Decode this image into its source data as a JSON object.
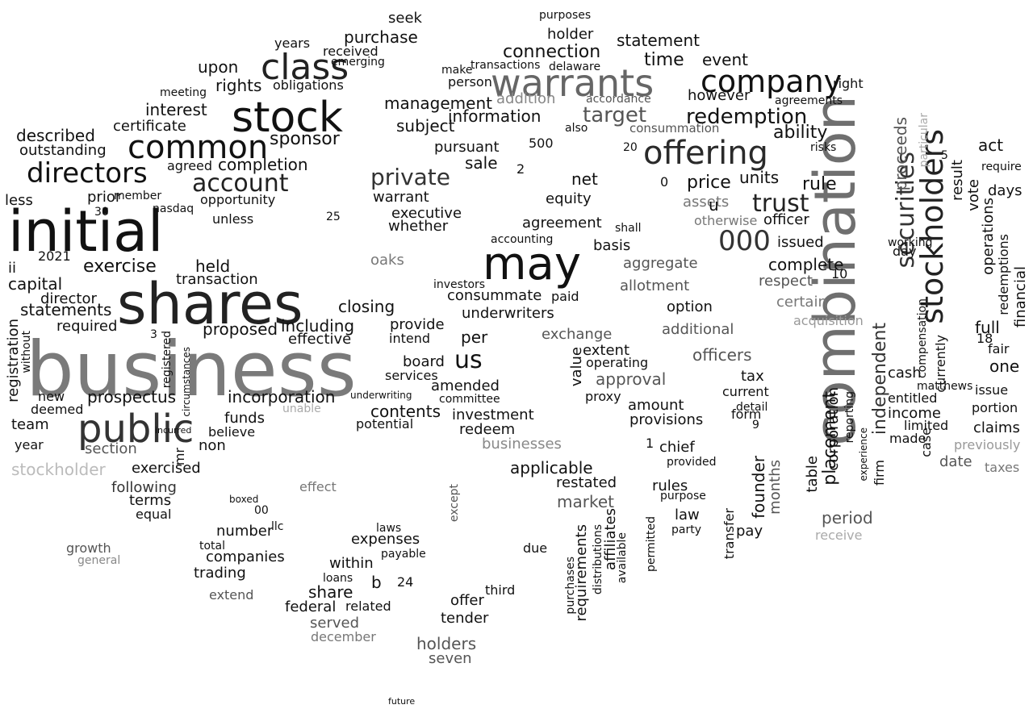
{
  "colors": {
    "background": "#ffffff"
  },
  "words": [
    {
      "text": "business",
      "color": "#7a7a7a"
    },
    {
      "text": "combination",
      "color": "#6f6f6f"
    },
    {
      "text": "initial",
      "color": "#111111"
    },
    {
      "text": "shares",
      "color": "#222222"
    },
    {
      "text": "may",
      "color": "#111111"
    },
    {
      "text": "warrants",
      "color": "#666666"
    },
    {
      "text": "stock",
      "color": "#111111"
    },
    {
      "text": "public",
      "color": "#333333"
    },
    {
      "text": "common",
      "color": "#111111"
    },
    {
      "text": "offering",
      "color": "#2a2a2a"
    },
    {
      "text": "class",
      "color": "#222222"
    },
    {
      "text": "company",
      "color": "#111111"
    },
    {
      "text": "stockholders",
      "color": "#222222"
    },
    {
      "text": "securities",
      "color": "#333333"
    },
    {
      "text": "directors",
      "color": "#111111"
    },
    {
      "text": "000",
      "color": "#333333"
    },
    {
      "text": "trust",
      "color": "#222222"
    },
    {
      "text": "account",
      "color": "#222222"
    },
    {
      "text": "us",
      "color": "#111111"
    },
    {
      "text": "redemption",
      "color": "#111111"
    },
    {
      "text": "private",
      "color": "#333333"
    },
    {
      "text": "target",
      "color": "#555555"
    },
    {
      "text": "proceeds",
      "color": "#555555"
    },
    {
      "text": "placement",
      "color": "#111111"
    },
    {
      "text": "independent",
      "color": "#333333"
    },
    {
      "text": "sponsor",
      "color": "#111111"
    },
    {
      "text": "exercise",
      "color": "#111111"
    },
    {
      "text": "prospectus",
      "color": "#111111"
    },
    {
      "text": "management",
      "color": "#111111"
    },
    {
      "text": "time",
      "color": "#111111"
    },
    {
      "text": "connection",
      "color": "#111111"
    },
    {
      "text": "purchase",
      "color": "#111111"
    },
    {
      "text": "statement",
      "color": "#111111"
    },
    {
      "text": "holder",
      "color": "#111111"
    },
    {
      "text": "however",
      "color": "#111111"
    },
    {
      "text": "event",
      "color": "#111111"
    },
    {
      "text": "ability",
      "color": "#111111"
    },
    {
      "text": "rule",
      "color": "#111111"
    },
    {
      "text": "units",
      "color": "#111111"
    },
    {
      "text": "price",
      "color": "#111111"
    },
    {
      "text": "information",
      "color": "#111111"
    },
    {
      "text": "subject",
      "color": "#111111"
    },
    {
      "text": "pursuant",
      "color": "#111111"
    },
    {
      "text": "sale",
      "color": "#111111"
    },
    {
      "text": "addition",
      "color": "#888888"
    },
    {
      "text": "accordance",
      "color": "#555555"
    },
    {
      "text": "consummation",
      "color": "#555555"
    },
    {
      "text": "interest",
      "color": "#111111"
    },
    {
      "text": "certificate",
      "color": "#111111"
    },
    {
      "text": "rights",
      "color": "#111111"
    },
    {
      "text": "obligations",
      "color": "#111111"
    },
    {
      "text": "upon",
      "color": "#111111"
    },
    {
      "text": "years",
      "color": "#111111"
    },
    {
      "text": "received",
      "color": "#111111"
    },
    {
      "text": "emerging",
      "color": "#111111"
    },
    {
      "text": "seek",
      "color": "#111111"
    },
    {
      "text": "described",
      "color": "#111111"
    },
    {
      "text": "outstanding",
      "color": "#111111"
    },
    {
      "text": "completion",
      "color": "#111111"
    },
    {
      "text": "agreed",
      "color": "#111111"
    },
    {
      "text": "prior",
      "color": "#111111"
    },
    {
      "text": "less",
      "color": "#111111"
    },
    {
      "text": "2021",
      "color": "#111111"
    },
    {
      "text": "ii",
      "color": "#111111"
    },
    {
      "text": "capital",
      "color": "#111111"
    },
    {
      "text": "director",
      "color": "#111111"
    },
    {
      "text": "statements",
      "color": "#111111"
    },
    {
      "text": "required",
      "color": "#111111"
    },
    {
      "text": "held",
      "color": "#111111"
    },
    {
      "text": "transaction",
      "color": "#111111"
    },
    {
      "text": "proposed",
      "color": "#111111"
    },
    {
      "text": "including",
      "color": "#111111"
    },
    {
      "text": "effective",
      "color": "#111111"
    },
    {
      "text": "closing",
      "color": "#111111"
    },
    {
      "text": "incorporation",
      "color": "#111111"
    },
    {
      "text": "funds",
      "color": "#111111"
    },
    {
      "text": "believe",
      "color": "#111111"
    },
    {
      "text": "non",
      "color": "#111111"
    },
    {
      "text": "section",
      "color": "#555555"
    },
    {
      "text": "stockholder",
      "color": "#bbbbbb"
    },
    {
      "text": "exercised",
      "color": "#111111"
    },
    {
      "text": "following",
      "color": "#333333"
    },
    {
      "text": "terms",
      "color": "#111111"
    },
    {
      "text": "equal",
      "color": "#111111"
    },
    {
      "text": "team",
      "color": "#111111"
    },
    {
      "text": "deemed",
      "color": "#111111"
    },
    {
      "text": "new",
      "color": "#111111"
    },
    {
      "text": "year",
      "color": "#111111"
    },
    {
      "text": "registration",
      "color": "#111111"
    },
    {
      "text": "warrant",
      "color": "#111111"
    },
    {
      "text": "executive",
      "color": "#111111"
    },
    {
      "text": "whether",
      "color": "#111111"
    },
    {
      "text": "oaks",
      "color": "#777777"
    },
    {
      "text": "equity",
      "color": "#111111"
    },
    {
      "text": "net",
      "color": "#111111"
    },
    {
      "text": "agreement",
      "color": "#111111"
    },
    {
      "text": "accounting",
      "color": "#111111"
    },
    {
      "text": "consummate",
      "color": "#111111"
    },
    {
      "text": "investors",
      "color": "#111111"
    },
    {
      "text": "underwriters",
      "color": "#111111"
    },
    {
      "text": "paid",
      "color": "#111111"
    },
    {
      "text": "provide",
      "color": "#111111"
    },
    {
      "text": "intend",
      "color": "#111111"
    },
    {
      "text": "per",
      "color": "#111111"
    },
    {
      "text": "board",
      "color": "#111111"
    },
    {
      "text": "services",
      "color": "#111111"
    },
    {
      "text": "amended",
      "color": "#111111"
    },
    {
      "text": "contents",
      "color": "#111111"
    },
    {
      "text": "committee",
      "color": "#111111"
    },
    {
      "text": "investment",
      "color": "#111111"
    },
    {
      "text": "redeem",
      "color": "#111111"
    },
    {
      "text": "potential",
      "color": "#111111"
    },
    {
      "text": "businesses",
      "color": "#888888"
    },
    {
      "text": "applicable",
      "color": "#111111"
    },
    {
      "text": "restated",
      "color": "#111111"
    },
    {
      "text": "market",
      "color": "#555555"
    },
    {
      "text": "exchange",
      "color": "#555555"
    },
    {
      "text": "extent",
      "color": "#111111"
    },
    {
      "text": "value",
      "color": "#111111"
    },
    {
      "text": "approval",
      "color": "#555555"
    },
    {
      "text": "operating",
      "color": "#111111"
    },
    {
      "text": "proxy",
      "color": "#111111"
    },
    {
      "text": "aggregate",
      "color": "#555555"
    },
    {
      "text": "basis",
      "color": "#111111"
    },
    {
      "text": "allotment",
      "color": "#555555"
    },
    {
      "text": "option",
      "color": "#111111"
    },
    {
      "text": "additional",
      "color": "#555555"
    },
    {
      "text": "officers",
      "color": "#555555"
    },
    {
      "text": "tax",
      "color": "#111111"
    },
    {
      "text": "amount",
      "color": "#111111"
    },
    {
      "text": "provisions",
      "color": "#111111"
    },
    {
      "text": "assets",
      "color": "#777777"
    },
    {
      "text": "otherwise",
      "color": "#777777"
    },
    {
      "text": "officer",
      "color": "#111111"
    },
    {
      "text": "issued",
      "color": "#111111"
    },
    {
      "text": "complete",
      "color": "#111111"
    },
    {
      "text": "respect",
      "color": "#555555"
    },
    {
      "text": "certain",
      "color": "#777777"
    },
    {
      "text": "acquisition",
      "color": "#999999"
    },
    {
      "text": "founder",
      "color": "#111111"
    },
    {
      "text": "months",
      "color": "#555555"
    },
    {
      "text": "table",
      "color": "#111111"
    },
    {
      "text": "period",
      "color": "#555555"
    },
    {
      "text": "receive",
      "color": "#aaaaaa"
    },
    {
      "text": "form",
      "color": "#111111"
    },
    {
      "text": "detail",
      "color": "#111111"
    },
    {
      "text": "current",
      "color": "#111111"
    },
    {
      "text": "pay",
      "color": "#111111"
    },
    {
      "text": "corporation",
      "color": "#111111"
    },
    {
      "text": "financial",
      "color": "#111111"
    },
    {
      "text": "operations",
      "color": "#111111"
    },
    {
      "text": "redemptions",
      "color": "#111111"
    },
    {
      "text": "vote",
      "color": "#111111"
    },
    {
      "text": "act",
      "color": "#111111"
    },
    {
      "text": "result",
      "color": "#111111"
    },
    {
      "text": "days",
      "color": "#111111"
    },
    {
      "text": "full",
      "color": "#111111"
    },
    {
      "text": "one",
      "color": "#111111"
    },
    {
      "text": "fair",
      "color": "#111111"
    },
    {
      "text": "issue",
      "color": "#111111"
    },
    {
      "text": "portion",
      "color": "#111111"
    },
    {
      "text": "claims",
      "color": "#111111"
    },
    {
      "text": "previously",
      "color": "#999999"
    },
    {
      "text": "taxes",
      "color": "#777777"
    },
    {
      "text": "date",
      "color": "#555555"
    },
    {
      "text": "cash",
      "color": "#111111"
    },
    {
      "text": "income",
      "color": "#111111"
    },
    {
      "text": "entitled",
      "color": "#111111"
    },
    {
      "text": "limited",
      "color": "#111111"
    },
    {
      "text": "made",
      "color": "#111111"
    },
    {
      "text": "matthews",
      "color": "#111111"
    },
    {
      "text": "firm",
      "color": "#111111"
    },
    {
      "text": "case",
      "color": "#111111"
    },
    {
      "text": "currently",
      "color": "#111111"
    },
    {
      "text": "compensation",
      "color": "#111111"
    },
    {
      "text": "particular",
      "color": "#aaaaaa"
    },
    {
      "text": "require",
      "color": "#111111"
    },
    {
      "text": "day",
      "color": "#111111"
    },
    {
      "text": "working",
      "color": "#111111"
    },
    {
      "text": "right",
      "color": "#111111"
    },
    {
      "text": "agreements",
      "color": "#111111"
    },
    {
      "text": "risks",
      "color": "#111111"
    },
    {
      "text": "reporting",
      "color": "#111111"
    },
    {
      "text": "experience",
      "color": "#111111"
    },
    {
      "text": "chief",
      "color": "#111111"
    },
    {
      "text": "provided",
      "color": "#111111"
    },
    {
      "text": "rules",
      "color": "#111111"
    },
    {
      "text": "purpose",
      "color": "#111111"
    },
    {
      "text": "law",
      "color": "#111111"
    },
    {
      "text": "party",
      "color": "#111111"
    },
    {
      "text": "permitted",
      "color": "#111111"
    },
    {
      "text": "transfer",
      "color": "#111111"
    },
    {
      "text": "requirements",
      "color": "#111111"
    },
    {
      "text": "distributions",
      "color": "#111111"
    },
    {
      "text": "affiliates",
      "color": "#111111"
    },
    {
      "text": "available",
      "color": "#111111"
    },
    {
      "text": "due",
      "color": "#111111"
    },
    {
      "text": "purchases",
      "color": "#111111"
    },
    {
      "text": "number",
      "color": "#111111"
    },
    {
      "text": "companies",
      "color": "#111111"
    },
    {
      "text": "trading",
      "color": "#111111"
    },
    {
      "text": "total",
      "color": "#111111"
    },
    {
      "text": "growth",
      "color": "#555555"
    },
    {
      "text": "general",
      "color": "#888888"
    },
    {
      "text": "extend",
      "color": "#555555"
    },
    {
      "text": "share",
      "color": "#111111"
    },
    {
      "text": "within",
      "color": "#111111"
    },
    {
      "text": "expenses",
      "color": "#111111"
    },
    {
      "text": "laws",
      "color": "#111111"
    },
    {
      "text": "payable",
      "color": "#111111"
    },
    {
      "text": "loans",
      "color": "#111111"
    },
    {
      "text": "federal",
      "color": "#111111"
    },
    {
      "text": "related",
      "color": "#111111"
    },
    {
      "text": "served",
      "color": "#555555"
    },
    {
      "text": "december",
      "color": "#777777"
    },
    {
      "text": "offer",
      "color": "#111111"
    },
    {
      "text": "tender",
      "color": "#111111"
    },
    {
      "text": "holders",
      "color": "#555555"
    },
    {
      "text": "seven",
      "color": "#555555"
    },
    {
      "text": "third",
      "color": "#111111"
    },
    {
      "text": "effect",
      "color": "#777777"
    },
    {
      "text": "unable",
      "color": "#aaaaaa"
    },
    {
      "text": "nasdaq",
      "color": "#111111"
    },
    {
      "text": "opportunity",
      "color": "#111111"
    },
    {
      "text": "unless",
      "color": "#111111"
    },
    {
      "text": "member",
      "color": "#111111"
    },
    {
      "text": "meeting",
      "color": "#111111"
    },
    {
      "text": "make",
      "color": "#111111"
    },
    {
      "text": "person",
      "color": "#111111"
    },
    {
      "text": "transactions",
      "color": "#111111"
    },
    {
      "text": "delaware",
      "color": "#111111"
    },
    {
      "text": "purposes",
      "color": "#111111"
    },
    {
      "text": "500",
      "color": "#111111"
    },
    {
      "text": "also",
      "color": "#111111"
    },
    {
      "text": "shall",
      "color": "#111111"
    },
    {
      "text": "incurred",
      "color": "#111111"
    },
    {
      "text": "registered",
      "color": "#111111"
    },
    {
      "text": "circumstances",
      "color": "#111111"
    },
    {
      "text": "underwriting",
      "color": "#111111"
    },
    {
      "text": "boxed",
      "color": "#111111"
    },
    {
      "text": "except",
      "color": "#555555"
    },
    {
      "text": "b",
      "color": "#111111"
    },
    {
      "text": "24",
      "color": "#111111"
    },
    {
      "text": "20",
      "color": "#111111"
    },
    {
      "text": "10",
      "color": "#111111"
    },
    {
      "text": "18",
      "color": "#111111"
    },
    {
      "text": "00",
      "color": "#111111"
    },
    {
      "text": "llc",
      "color": "#111111"
    },
    {
      "text": "2",
      "color": "#111111"
    },
    {
      "text": "0",
      "color": "#111111"
    },
    {
      "text": "1",
      "color": "#111111"
    },
    {
      "text": "u",
      "color": "#111111"
    },
    {
      "text": "mr",
      "color": "#111111"
    },
    {
      "text": "30",
      "color": "#111111"
    },
    {
      "text": "25",
      "color": "#111111"
    },
    {
      "text": "5",
      "color": "#111111"
    },
    {
      "text": "9",
      "color": "#111111"
    },
    {
      "text": "3",
      "color": "#111111"
    },
    {
      "text": "without",
      "color": "#111111"
    },
    {
      "text": "future",
      "color": "#111111"
    }
  ]
}
